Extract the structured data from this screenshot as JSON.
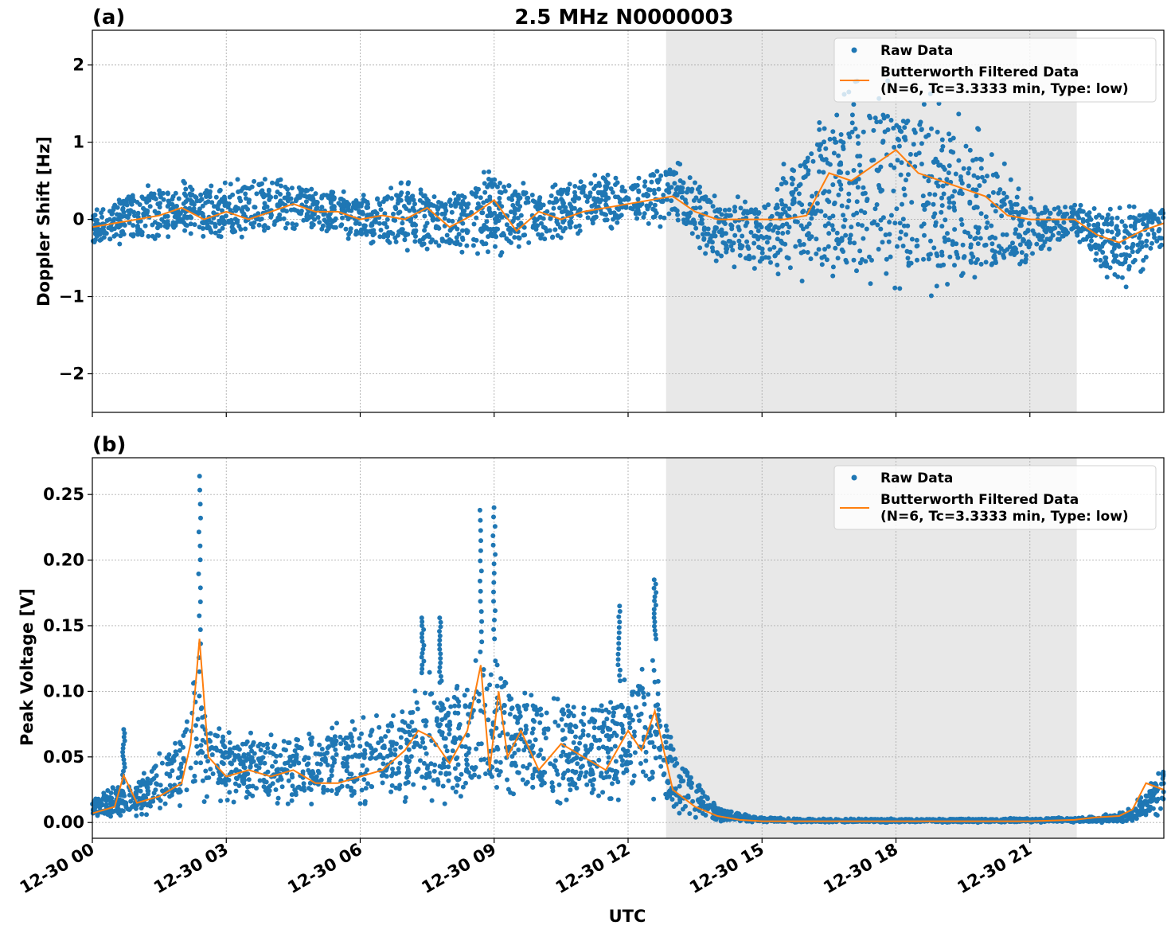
{
  "title": "2.5 MHz N0000003",
  "xlabel": "UTC",
  "x_tick_labels": [
    "12-30 00",
    "12-30 03",
    "12-30 06",
    "12-30 09",
    "12-30 12",
    "12-30 15",
    "12-30 18",
    "12-30 21"
  ],
  "shaded_region_utc_hours": [
    12.85,
    22.05
  ],
  "colors": {
    "raw": "#1f77b4",
    "filtered": "#ff7f0e",
    "shade": "#e8e8e8"
  },
  "legend": {
    "raw": "Raw Data",
    "filtered_line1": "Butterworth Filtered Data",
    "filtered_line2": "(N=6, Tc=3.3333 min, Type: low)"
  },
  "chart_data": [
    {
      "panel": "(a)",
      "type": "scatter",
      "ylabel": "Doppler Shift [Hz]",
      "xlim_utc_hours": [
        0,
        24
      ],
      "ylim": [
        -2.5,
        2.45
      ],
      "y_ticks": [
        -2,
        -1,
        0,
        1,
        2
      ],
      "y_tick_labels": [
        "−2",
        "−1",
        "0",
        "1",
        "2"
      ],
      "grid": true,
      "legend_placement": "top-right",
      "series": [
        {
          "name": "Raw Data",
          "kind": "scatter",
          "envelope_utc_hours": [
            0,
            1,
            2,
            3,
            4,
            5,
            6,
            7,
            8,
            9,
            10,
            11,
            12,
            13,
            14,
            15,
            16,
            17,
            18,
            19,
            20,
            21,
            22,
            23,
            24
          ],
          "envelope_upper": [
            0.2,
            0.45,
            0.5,
            0.5,
            0.6,
            0.5,
            0.3,
            0.5,
            0.4,
            0.7,
            0.4,
            0.6,
            0.6,
            0.8,
            0.3,
            0.3,
            1.2,
            1.8,
            1.8,
            1.6,
            1.1,
            0.3,
            0.2,
            0.2,
            0.2
          ],
          "envelope_lower": [
            -0.4,
            -0.3,
            -0.2,
            -0.3,
            -0.2,
            -0.2,
            -0.3,
            -0.4,
            -0.5,
            -0.5,
            -0.3,
            -0.2,
            -0.1,
            -0.1,
            -0.6,
            -0.7,
            -0.9,
            -1.1,
            -1.0,
            -1.0,
            -0.9,
            -0.6,
            -0.2,
            -1.0,
            -0.4
          ]
        },
        {
          "name": "Butterworth Filtered Data (N=6, Tc=3.3333 min, Type: low)",
          "kind": "line",
          "x_utc_hours": [
            0,
            0.5,
            1,
            1.5,
            2,
            2.5,
            3,
            3.5,
            4,
            4.5,
            5,
            5.5,
            6,
            6.5,
            7,
            7.5,
            8,
            8.5,
            9,
            9.5,
            10,
            10.5,
            11,
            11.5,
            12,
            12.5,
            13,
            13.5,
            14,
            14.5,
            15,
            15.5,
            16,
            16.5,
            17,
            17.5,
            18,
            18.5,
            19,
            19.5,
            20,
            20.5,
            21,
            21.5,
            22,
            22.5,
            23,
            23.5,
            24
          ],
          "y": [
            -0.1,
            -0.05,
            0.0,
            0.05,
            0.15,
            0.0,
            0.1,
            0.0,
            0.1,
            0.2,
            0.1,
            0.1,
            0.0,
            0.05,
            0.0,
            0.15,
            -0.1,
            0.05,
            0.25,
            -0.15,
            0.1,
            0.0,
            0.1,
            0.15,
            0.2,
            0.25,
            0.3,
            0.1,
            0.0,
            0.0,
            0.0,
            0.0,
            0.05,
            0.6,
            0.5,
            0.7,
            0.9,
            0.6,
            0.5,
            0.4,
            0.3,
            0.05,
            0.0,
            0.0,
            0.0,
            -0.2,
            -0.3,
            -0.15,
            -0.05
          ]
        }
      ]
    },
    {
      "panel": "(b)",
      "type": "scatter",
      "ylabel": "Peak Voltage [V]",
      "xlim_utc_hours": [
        0,
        24
      ],
      "ylim": [
        -0.012,
        0.278
      ],
      "y_ticks": [
        0,
        0.05,
        0.1,
        0.15,
        0.2,
        0.25
      ],
      "y_tick_labels": [
        "0.00",
        "0.05",
        "0.10",
        "0.15",
        "0.20",
        "0.25"
      ],
      "grid": true,
      "legend_placement": "top-right",
      "series": [
        {
          "name": "Raw Data",
          "kind": "scatter",
          "envelope_utc_hours": [
            0,
            1,
            2,
            2.3,
            2.5,
            3,
            4,
            5,
            6,
            7,
            7.5,
            8,
            8.7,
            9,
            9.5,
            10,
            11,
            12,
            12.6,
            13,
            14,
            15,
            16,
            18,
            20,
            22,
            23,
            23.5,
            24
          ],
          "envelope_upper": [
            0.02,
            0.035,
            0.07,
            0.14,
            0.09,
            0.07,
            0.07,
            0.075,
            0.08,
            0.09,
            0.12,
            0.1,
            0.13,
            0.14,
            0.11,
            0.1,
            0.1,
            0.11,
            0.14,
            0.06,
            0.012,
            0.004,
            0.003,
            0.003,
            0.003,
            0.004,
            0.007,
            0.02,
            0.045
          ],
          "envelope_lower": [
            0.003,
            0.005,
            0.01,
            0.015,
            0.015,
            0.015,
            0.012,
            0.012,
            0.012,
            0.015,
            0.015,
            0.012,
            0.015,
            0.015,
            0.015,
            0.012,
            0.015,
            0.015,
            0.015,
            0.006,
            0.0,
            0.0,
            0.0,
            0.0,
            0.0,
            0.0,
            0.0,
            0.002,
            0.005
          ],
          "spikes": [
            {
              "x_utc_hours": 2.4,
              "y": 0.264
            },
            {
              "x_utc_hours": 8.7,
              "y": 0.238
            },
            {
              "x_utc_hours": 9.0,
              "y": 0.24
            },
            {
              "x_utc_hours": 7.4,
              "y": 0.156
            },
            {
              "x_utc_hours": 7.8,
              "y": 0.156
            },
            {
              "x_utc_hours": 11.8,
              "y": 0.165
            },
            {
              "x_utc_hours": 12.6,
              "y": 0.185
            },
            {
              "x_utc_hours": 0.7,
              "y": 0.071
            }
          ]
        },
        {
          "name": "Butterworth Filtered Data (N=6, Tc=3.3333 min, Type: low)",
          "kind": "line",
          "x_utc_hours": [
            0,
            0.5,
            0.7,
            1,
            1.5,
            2,
            2.2,
            2.4,
            2.6,
            3,
            3.5,
            4,
            4.5,
            5,
            5.5,
            6,
            6.5,
            7,
            7.3,
            7.6,
            8,
            8.4,
            8.7,
            8.9,
            9.1,
            9.3,
            9.6,
            10,
            10.5,
            11,
            11.5,
            12,
            12.3,
            12.6,
            13,
            13.5,
            14,
            14.5,
            15,
            16,
            18,
            20,
            21,
            22,
            22.5,
            23,
            23.3,
            23.6,
            24
          ],
          "y": [
            0.007,
            0.012,
            0.036,
            0.015,
            0.02,
            0.03,
            0.06,
            0.14,
            0.05,
            0.035,
            0.04,
            0.035,
            0.04,
            0.03,
            0.03,
            0.035,
            0.04,
            0.055,
            0.07,
            0.065,
            0.045,
            0.07,
            0.12,
            0.04,
            0.1,
            0.05,
            0.07,
            0.04,
            0.06,
            0.05,
            0.04,
            0.07,
            0.055,
            0.085,
            0.025,
            0.012,
            0.005,
            0.002,
            0.001,
            0.001,
            0.001,
            0.001,
            0.001,
            0.002,
            0.004,
            0.005,
            0.01,
            0.03,
            0.025
          ]
        }
      ]
    }
  ]
}
